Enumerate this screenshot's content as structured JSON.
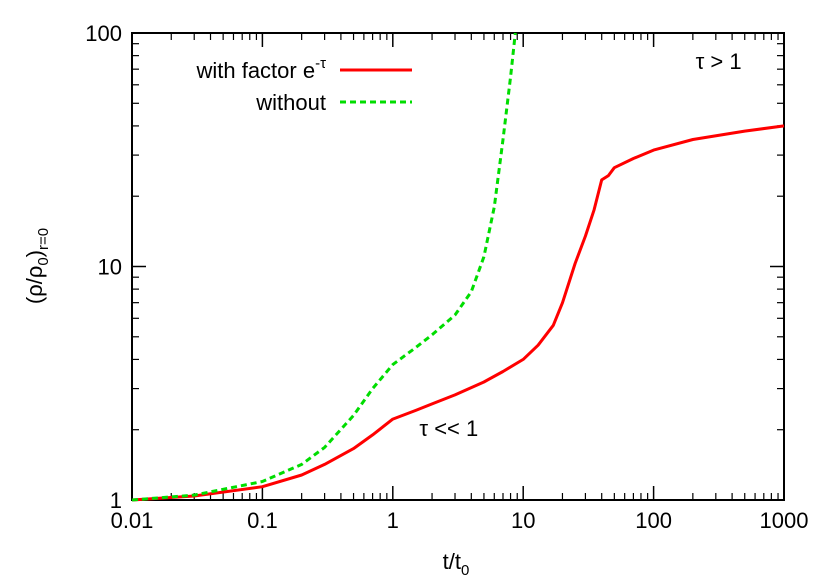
{
  "chart_data": {
    "type": "line",
    "xlabel": {
      "main": "t/t",
      "sub": "0"
    },
    "ylabel": {
      "pre": "(ρ/ρ",
      "sub1": "0",
      "mid": ")",
      "sub2": "r=0"
    },
    "x_scale": "log",
    "y_scale": "log",
    "xlim": [
      0.01,
      1000
    ],
    "ylim": [
      1,
      100
    ],
    "x_ticks": [
      0.01,
      0.1,
      1,
      10,
      100,
      1000
    ],
    "x_tick_labels": [
      "0.01",
      "0.1",
      "1",
      "10",
      "100",
      "1000"
    ],
    "y_ticks": [
      1,
      10,
      100
    ],
    "y_tick_labels": [
      "1",
      "10",
      "100"
    ],
    "grid": false,
    "legend_placement": "top-left",
    "series": [
      {
        "name": "with factor e",
        "name_sup": "-τ",
        "color": "#ff0000",
        "dash": "solid",
        "x": [
          0.01,
          0.03,
          0.1,
          0.2,
          0.3,
          0.5,
          0.7,
          1.0,
          1.5,
          2.0,
          3.0,
          5.0,
          7.0,
          10.0,
          13.0,
          17.0,
          20.0,
          25.0,
          30.0,
          35.0,
          40.0,
          45.0,
          50.0,
          70.0,
          100.0,
          200.0,
          500.0,
          1000.0
        ],
        "y": [
          1.0,
          1.04,
          1.14,
          1.28,
          1.42,
          1.66,
          1.9,
          2.22,
          2.42,
          2.58,
          2.82,
          3.2,
          3.55,
          4.0,
          4.6,
          5.6,
          7.0,
          10.3,
          13.5,
          17.5,
          23.5,
          24.5,
          26.5,
          29.0,
          31.5,
          35.0,
          38.0,
          40.0
        ]
      },
      {
        "name": "without",
        "color": "#00dd00",
        "dash": "dashed",
        "x": [
          0.01,
          0.03,
          0.1,
          0.2,
          0.3,
          0.5,
          0.7,
          1.0,
          1.5,
          2.0,
          3.0,
          4.0,
          5.0,
          6.0,
          7.0,
          8.0,
          8.7
        ],
        "y": [
          1.0,
          1.05,
          1.2,
          1.42,
          1.68,
          2.3,
          3.0,
          3.8,
          4.5,
          5.1,
          6.2,
          7.8,
          11.0,
          18.0,
          35.0,
          65.0,
          100.0
        ]
      }
    ],
    "annotations": [
      {
        "text": "τ << 1",
        "x": 1.6,
        "y": 1.88
      },
      {
        "text": "τ > 1",
        "x": 210,
        "y": 70
      }
    ]
  }
}
